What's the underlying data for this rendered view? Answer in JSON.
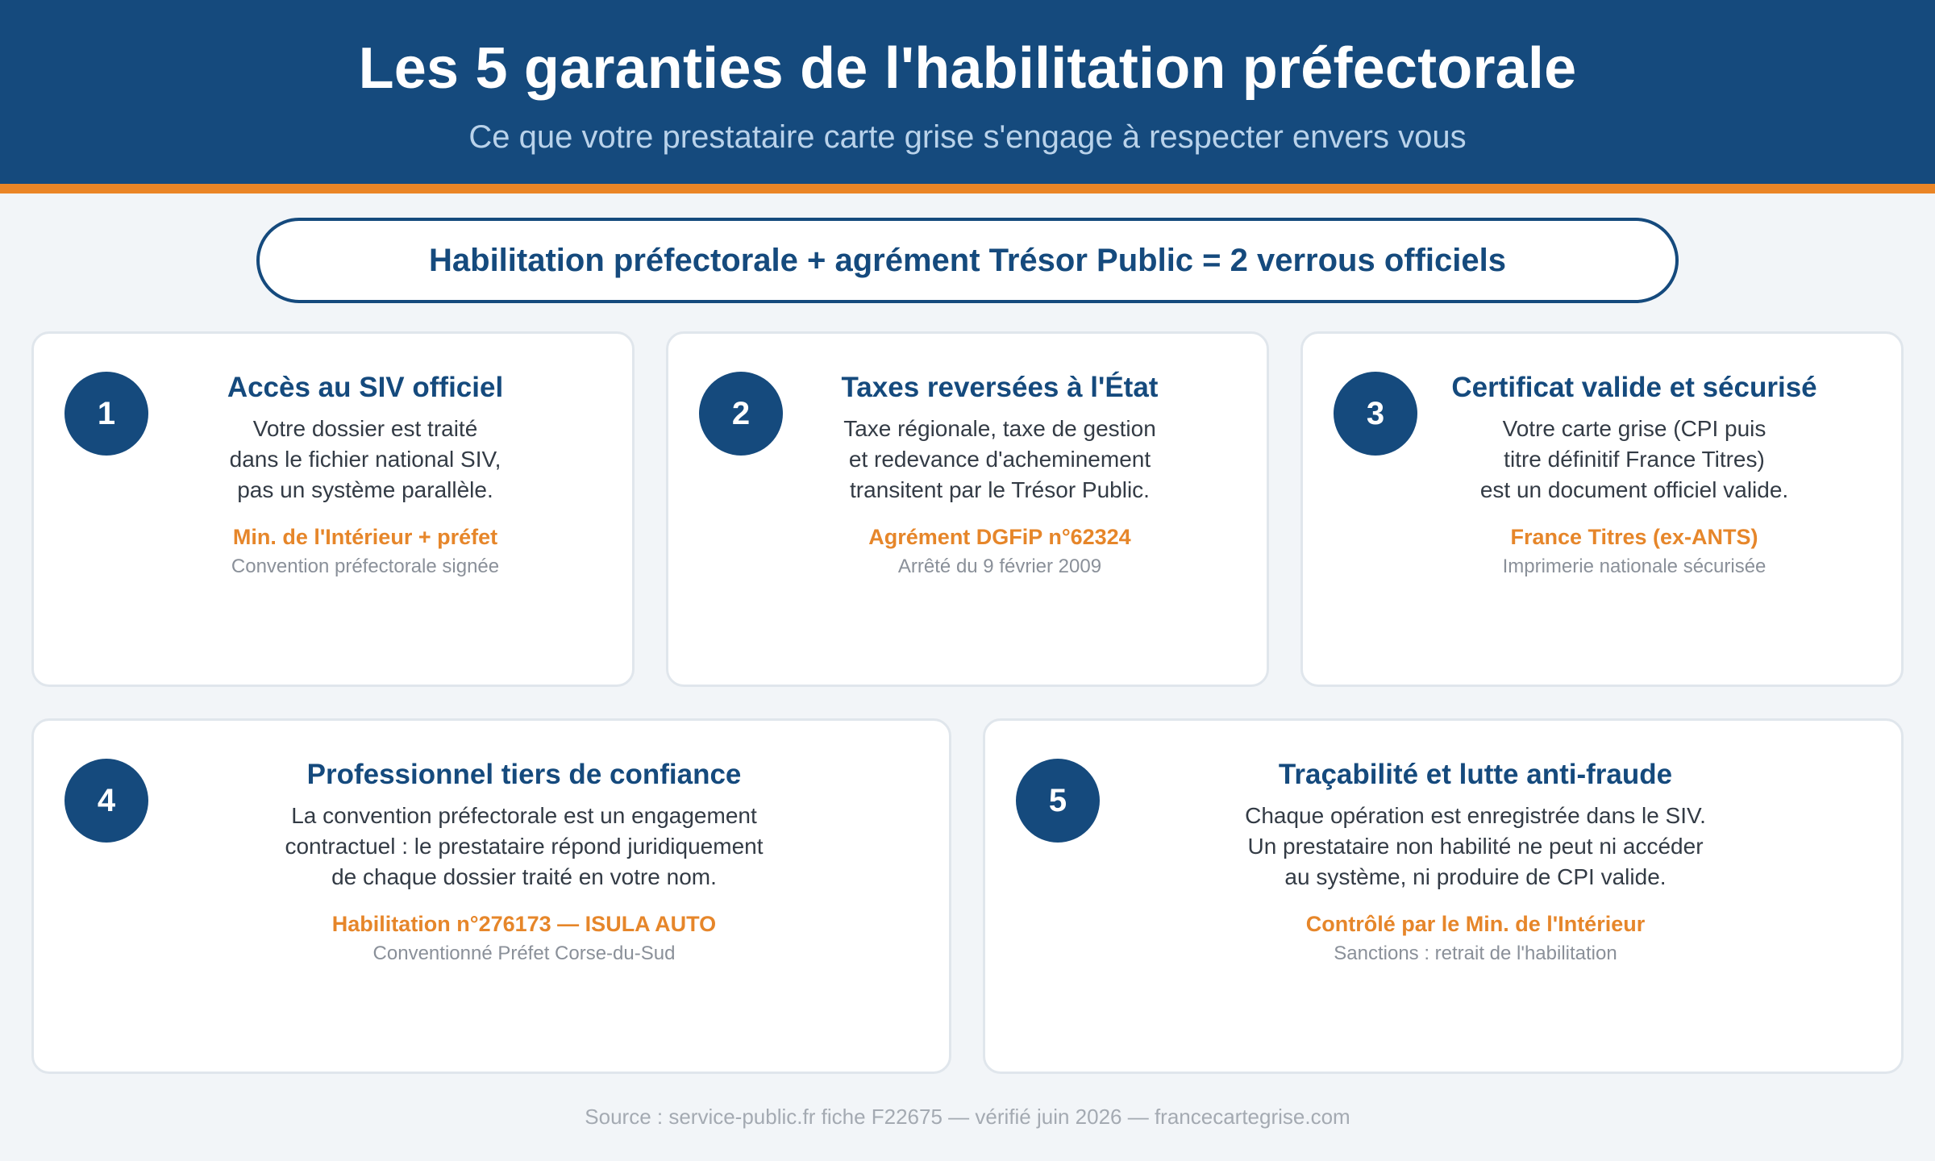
{
  "header": {
    "title": "Les 5 garanties de l'habilitation préfectorale",
    "subtitle": "Ce que votre prestataire carte grise s'engage à respecter envers vous"
  },
  "banner": {
    "text": "Habilitation préfectorale + agrément Trésor Public = 2 verrous officiels"
  },
  "cards": [
    {
      "number": "1",
      "title": "Accès au SIV officiel",
      "desc": [
        "Votre dossier est traité",
        "dans le fichier national SIV,",
        "pas un système parallèle."
      ],
      "reference": "Min. de l'Intérieur + préfet",
      "note": "Convention préfectorale signée"
    },
    {
      "number": "2",
      "title": "Taxes reversées à l'État",
      "desc": [
        "Taxe régionale, taxe de gestion",
        "et redevance d'acheminement",
        "transitent par le Trésor Public."
      ],
      "reference": "Agrément DGFiP n°62324",
      "note": "Arrêté du 9 février 2009"
    },
    {
      "number": "3",
      "title": "Certificat valide et sécurisé",
      "desc": [
        "Votre carte grise (CPI puis",
        "titre définitif France Titres)",
        "est un document officiel valide."
      ],
      "reference": "France Titres (ex-ANTS)",
      "note": "Imprimerie nationale sécurisée"
    },
    {
      "number": "4",
      "title": "Professionnel tiers de confiance",
      "desc": [
        "La convention préfectorale est un engagement",
        "contractuel : le prestataire répond juridiquement",
        "de chaque dossier traité en votre nom."
      ],
      "reference": "Habilitation n°276173 — ISULA AUTO",
      "note": "Conventionné Préfet Corse-du-Sud"
    },
    {
      "number": "5",
      "title": "Traçabilité et lutte anti-fraude",
      "desc": [
        "Chaque opération est enregistrée dans le SIV.",
        "Un prestataire non habilité ne peut ni accéder",
        "au système, ni produire de CPI valide."
      ],
      "reference": "Contrôlé par le Min. de l'Intérieur",
      "note": "Sanctions : retrait de l'habilitation"
    }
  ],
  "footer": {
    "source": "Source : service-public.fr fiche F22675 — vérifié juin 2026 — francecartegrise.com"
  },
  "colors": {
    "primary": "#154a7d",
    "accent": "#ea8526",
    "background": "#f2f5f8"
  }
}
